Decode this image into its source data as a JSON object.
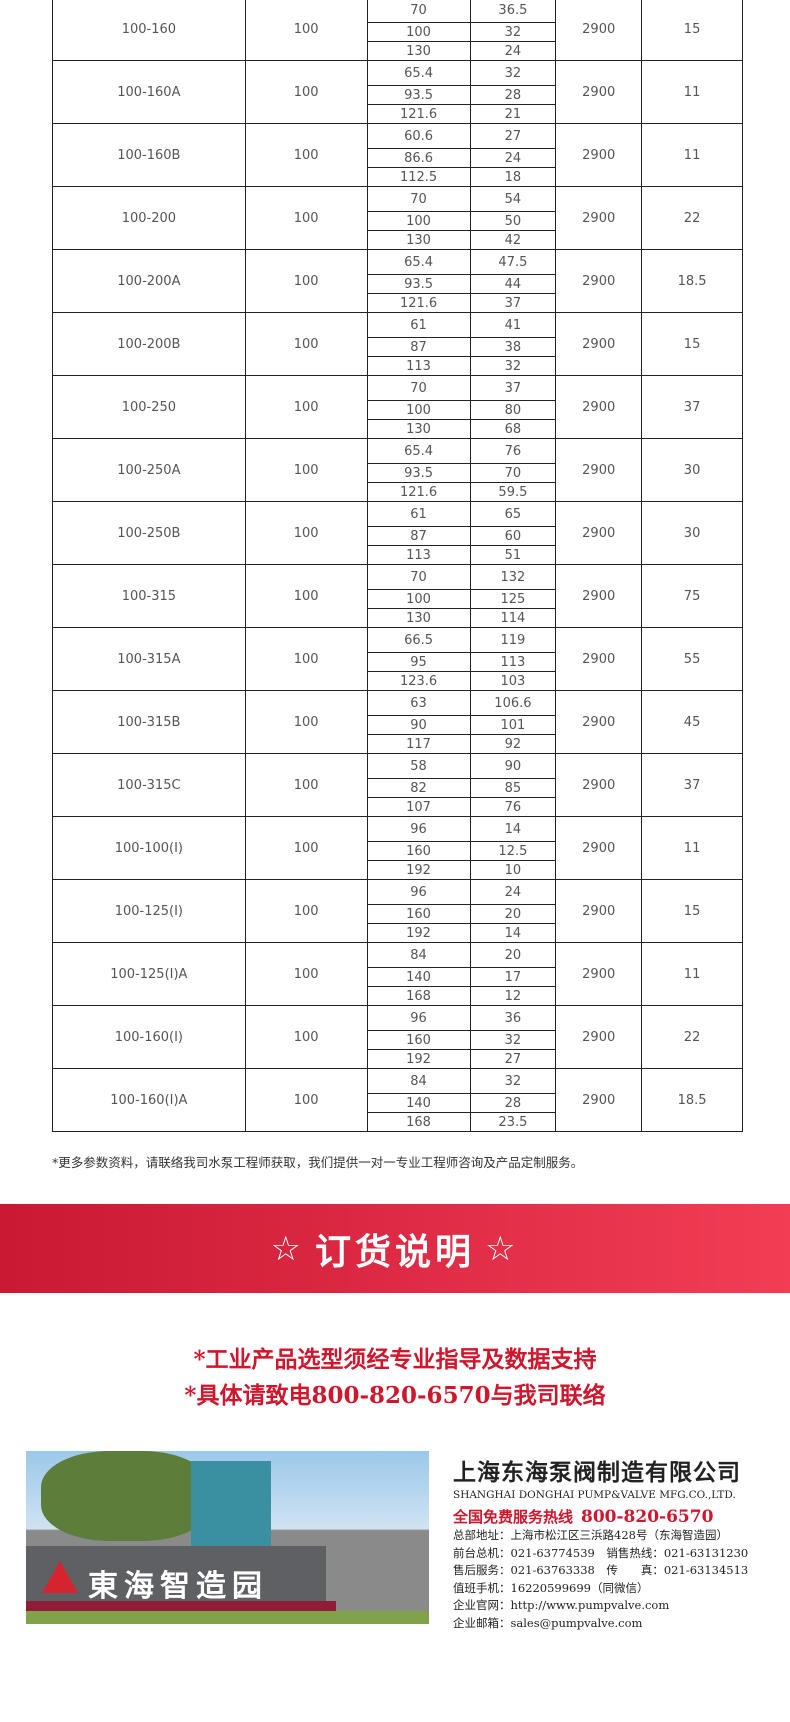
{
  "table": {
    "rows": [
      {
        "model": "100-160",
        "size": "100",
        "flow": [
          "70",
          "100",
          "130"
        ],
        "head": [
          "36.5",
          "32",
          "24"
        ],
        "speed": "2900",
        "power": "15"
      },
      {
        "model": "100-160A",
        "size": "100",
        "flow": [
          "65.4",
          "93.5",
          "121.6"
        ],
        "head": [
          "32",
          "28",
          "21"
        ],
        "speed": "2900",
        "power": "11"
      },
      {
        "model": "100-160B",
        "size": "100",
        "flow": [
          "60.6",
          "86.6",
          "112.5"
        ],
        "head": [
          "27",
          "24",
          "18"
        ],
        "speed": "2900",
        "power": "11"
      },
      {
        "model": "100-200",
        "size": "100",
        "flow": [
          "70",
          "100",
          "130"
        ],
        "head": [
          "54",
          "50",
          "42"
        ],
        "speed": "2900",
        "power": "22"
      },
      {
        "model": "100-200A",
        "size": "100",
        "flow": [
          "65.4",
          "93.5",
          "121.6"
        ],
        "head": [
          "47.5",
          "44",
          "37"
        ],
        "speed": "2900",
        "power": "18.5"
      },
      {
        "model": "100-200B",
        "size": "100",
        "flow": [
          "61",
          "87",
          "113"
        ],
        "head": [
          "41",
          "38",
          "32"
        ],
        "speed": "2900",
        "power": "15"
      },
      {
        "model": "100-250",
        "size": "100",
        "flow": [
          "70",
          "100",
          "130"
        ],
        "head": [
          "37",
          "80",
          "68"
        ],
        "speed": "2900",
        "power": "37"
      },
      {
        "model": "100-250A",
        "size": "100",
        "flow": [
          "65.4",
          "93.5",
          "121.6"
        ],
        "head": [
          "76",
          "70",
          "59.5"
        ],
        "speed": "2900",
        "power": "30"
      },
      {
        "model": "100-250B",
        "size": "100",
        "flow": [
          "61",
          "87",
          "113"
        ],
        "head": [
          "65",
          "60",
          "51"
        ],
        "speed": "2900",
        "power": "30"
      },
      {
        "model": "100-315",
        "size": "100",
        "flow": [
          "70",
          "100",
          "130"
        ],
        "head": [
          "132",
          "125",
          "114"
        ],
        "speed": "2900",
        "power": "75"
      },
      {
        "model": "100-315A",
        "size": "100",
        "flow": [
          "66.5",
          "95",
          "123.6"
        ],
        "head": [
          "119",
          "113",
          "103"
        ],
        "speed": "2900",
        "power": "55"
      },
      {
        "model": "100-315B",
        "size": "100",
        "flow": [
          "63",
          "90",
          "117"
        ],
        "head": [
          "106.6",
          "101",
          "92"
        ],
        "speed": "2900",
        "power": "45"
      },
      {
        "model": "100-315C",
        "size": "100",
        "flow": [
          "58",
          "82",
          "107"
        ],
        "head": [
          "90",
          "85",
          "76"
        ],
        "speed": "2900",
        "power": "37"
      },
      {
        "model": "100-100(I)",
        "size": "100",
        "flow": [
          "96",
          "160",
          "192"
        ],
        "head": [
          "14",
          "12.5",
          "10"
        ],
        "speed": "2900",
        "power": "11"
      },
      {
        "model": "100-125(I)",
        "size": "100",
        "flow": [
          "96",
          "160",
          "192"
        ],
        "head": [
          "24",
          "20",
          "14"
        ],
        "speed": "2900",
        "power": "15"
      },
      {
        "model": "100-125(I)A",
        "size": "100",
        "flow": [
          "84",
          "140",
          "168"
        ],
        "head": [
          "20",
          "17",
          "12"
        ],
        "speed": "2900",
        "power": "11"
      },
      {
        "model": "100-160(I)",
        "size": "100",
        "flow": [
          "96",
          "160",
          "192"
        ],
        "head": [
          "36",
          "32",
          "27"
        ],
        "speed": "2900",
        "power": "22"
      },
      {
        "model": "100-160(I)A",
        "size": "100",
        "flow": [
          "84",
          "140",
          "168"
        ],
        "head": [
          "32",
          "28",
          "23.5"
        ],
        "speed": "2900",
        "power": "18.5"
      }
    ]
  },
  "note": "*更多参数资料，请联络我司水泵工程师获取，我们提供一对一专业工程师咨询及产品定制服务。",
  "banner": {
    "star": "☆",
    "title": "订货说明"
  },
  "notice": {
    "line1": "*工业产品选型须经专业指导及数据支持",
    "line2": "*具体请致电800-820-6570与我司联络"
  },
  "photo": {
    "sign": "東海智造园"
  },
  "company": {
    "name_cn": "上海东海泵阀制造有限公司",
    "name_en": "SHANGHAI DONGHAI PUMP&VALVE MFG.CO.,LTD.",
    "hotline_label": "全国免费服务热线",
    "hotline": "800-820-6570",
    "lines": [
      "总部地址：上海市松江区三浜路428号（东海智造园）",
      "前台总机：021-63774539　销售热线：021-63131230",
      "售后服务：021-63763338　传　　真：021-63134513",
      "值班手机：16220599699（同微信）",
      "企业官网：http://www.pumpvalve.com",
      "企业邮箱：sales@pumpvalve.com"
    ]
  },
  "colors": {
    "accent_red": "#d0162c",
    "banner_red": "#de2a44"
  }
}
